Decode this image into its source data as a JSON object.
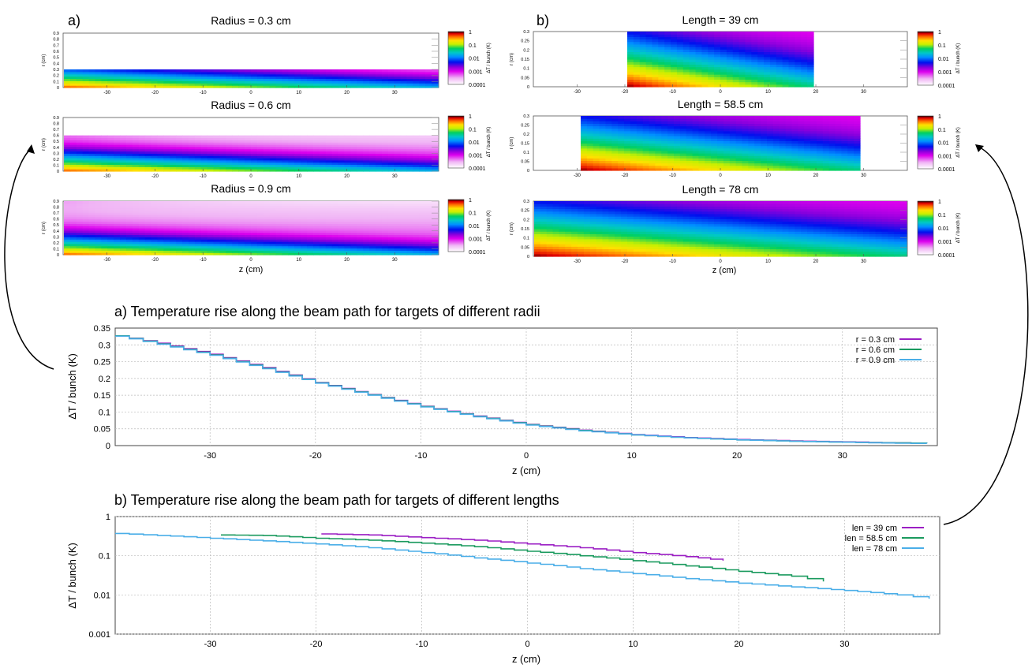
{
  "heatmaps": {
    "left": {
      "label": "a)",
      "panels": [
        {
          "title": "Radius = 0.3 cm",
          "rmax": 0.3
        },
        {
          "title": "Radius = 0.6 cm",
          "rmax": 0.6
        },
        {
          "title": "Radius = 0.9 cm",
          "rmax": 0.9
        }
      ],
      "rmax_axis": 0.9,
      "y_ticks": [
        "0",
        "0.1",
        "0.2",
        "0.3",
        "0.4",
        "0.5",
        "0.6",
        "0.7",
        "0.8",
        "0.9"
      ],
      "y_label": "r (cm)",
      "x_ticks": [
        "-30",
        "-20",
        "-10",
        "0",
        "10",
        "20",
        "30"
      ],
      "x_label": "z (cm)",
      "zmin": -39,
      "zmax": 39
    },
    "right": {
      "label": "b)",
      "panels": [
        {
          "title": "Length = 39 cm",
          "length": 39
        },
        {
          "title": "Length = 58.5 cm",
          "length": 58.5
        },
        {
          "title": "Length = 78 cm",
          "length": 78
        }
      ],
      "y_ticks": [
        "0",
        "0.05",
        "0.1",
        "0.15",
        "0.2",
        "0.25",
        "0.3"
      ],
      "y_label": "r (cm)",
      "x_ticks": [
        "-30",
        "-20",
        "-10",
        "0",
        "10",
        "20",
        "30"
      ],
      "x_label": "z (cm)",
      "zmin": -39,
      "zmax": 39
    },
    "colorbar": {
      "ticks": [
        "1",
        "0.1",
        "0.01",
        "0.001",
        "0.0001"
      ],
      "label": "ΔT / bunch (K)"
    }
  },
  "chart_data": [
    {
      "type": "line",
      "title": "a) Temperature rise along the beam path for targets of different radii",
      "xlabel": "z (cm)",
      "ylabel": "ΔT / bunch (K)",
      "xlim": [
        -39,
        39
      ],
      "ylim": [
        0,
        0.35
      ],
      "x_ticks": [
        -30,
        -20,
        -10,
        0,
        10,
        20,
        30
      ],
      "y_ticks": [
        0,
        0.05,
        0.1,
        0.15,
        0.2,
        0.25,
        0.3,
        0.35
      ],
      "y_tick_labels": [
        "0",
        "0.05",
        "0.1",
        "0.15",
        "0.2",
        "0.25",
        "0.3",
        "0.35"
      ],
      "legend_position": "top-right",
      "grid": true,
      "x": [
        -39,
        -35,
        -30,
        -25,
        -20,
        -15,
        -10,
        -5,
        0,
        5,
        10,
        15,
        20,
        25,
        30,
        35,
        38
      ],
      "series": [
        {
          "name": "r = 0.3 cm",
          "color": "#9b1fc4",
          "values": [
            0.327,
            0.305,
            0.272,
            0.232,
            0.188,
            0.152,
            0.117,
            0.088,
            0.063,
            0.046,
            0.033,
            0.024,
            0.018,
            0.014,
            0.011,
            0.008,
            0.007
          ]
        },
        {
          "name": "r = 0.6 cm",
          "color": "#1a9a5e",
          "values": [
            0.327,
            0.303,
            0.27,
            0.23,
            0.187,
            0.151,
            0.116,
            0.087,
            0.062,
            0.045,
            0.032,
            0.023,
            0.017,
            0.013,
            0.01,
            0.008,
            0.007
          ]
        },
        {
          "name": "r = 0.9 cm",
          "color": "#4aaee8",
          "values": [
            0.326,
            0.302,
            0.269,
            0.229,
            0.186,
            0.15,
            0.115,
            0.086,
            0.061,
            0.044,
            0.032,
            0.023,
            0.017,
            0.013,
            0.01,
            0.007,
            0.006
          ]
        }
      ]
    },
    {
      "type": "line",
      "title": "b) Temperature rise along the beam path for targets of different lengths",
      "xlabel": "z (cm)",
      "ylabel": "ΔT / bunch (K)",
      "xlim": [
        -39,
        39
      ],
      "ylim": [
        0.001,
        1
      ],
      "yscale": "log",
      "x_ticks": [
        -30,
        -20,
        -10,
        0,
        10,
        20,
        30
      ],
      "y_ticks": [
        0.001,
        0.01,
        0.1,
        1
      ],
      "y_tick_labels": [
        "0.001",
        "0.01",
        "0.1",
        "1"
      ],
      "legend_position": "top-right",
      "grid": true,
      "series": [
        {
          "name": "len = 39 cm",
          "color": "#9b1fc4",
          "x": [
            -19.5,
            -15,
            -10,
            -5,
            0,
            5,
            10,
            15,
            18.5
          ],
          "values": [
            0.36,
            0.34,
            0.29,
            0.25,
            0.2,
            0.16,
            0.12,
            0.095,
            0.075
          ]
        },
        {
          "name": "len = 58.5 cm",
          "color": "#1a9a5e",
          "x": [
            -29,
            -25,
            -20,
            -15,
            -10,
            -5,
            0,
            5,
            10,
            15,
            20,
            25,
            28
          ],
          "values": [
            0.34,
            0.33,
            0.28,
            0.25,
            0.21,
            0.17,
            0.13,
            0.1,
            0.075,
            0.055,
            0.04,
            0.03,
            0.022
          ]
        },
        {
          "name": "len = 78 cm",
          "color": "#4aaee8",
          "x": [
            -39,
            -35,
            -30,
            -25,
            -20,
            -15,
            -10,
            -5,
            0,
            5,
            10,
            15,
            20,
            25,
            30,
            35,
            38
          ],
          "values": [
            0.37,
            0.33,
            0.28,
            0.24,
            0.2,
            0.16,
            0.12,
            0.088,
            0.065,
            0.047,
            0.035,
            0.026,
            0.02,
            0.016,
            0.013,
            0.01,
            0.008
          ]
        }
      ]
    }
  ]
}
